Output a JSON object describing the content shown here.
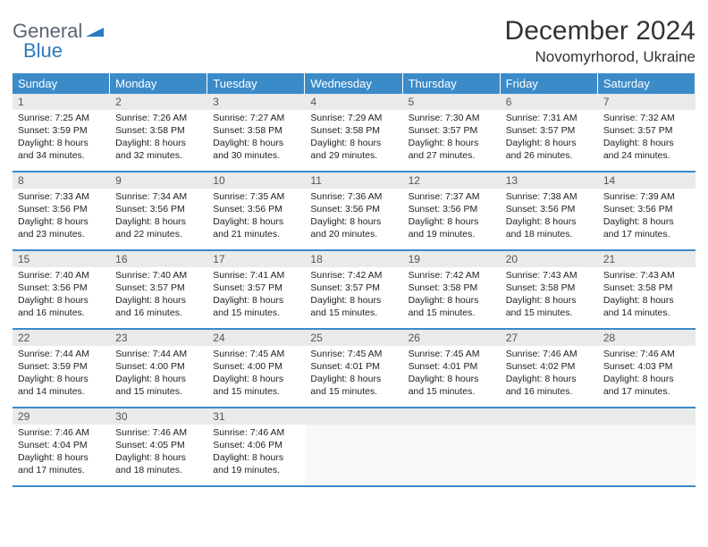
{
  "logo": {
    "part1": "General",
    "part2": "Blue"
  },
  "title": "December 2024",
  "subtitle": "Novomyrhorod, Ukraine",
  "colors": {
    "header_bar": "#3b8bc9",
    "header_text": "#ffffff",
    "daynum_bg": "#e9eaea",
    "cell_border": "#3b8bc9",
    "logo_gray": "#5c6670",
    "logo_blue": "#2a7bbf",
    "text": "#222222"
  },
  "dow": [
    "Sunday",
    "Monday",
    "Tuesday",
    "Wednesday",
    "Thursday",
    "Friday",
    "Saturday"
  ],
  "weeks": [
    [
      {
        "n": "1",
        "sunrise": "Sunrise: 7:25 AM",
        "sunset": "Sunset: 3:59 PM",
        "day": "Daylight: 8 hours and 34 minutes."
      },
      {
        "n": "2",
        "sunrise": "Sunrise: 7:26 AM",
        "sunset": "Sunset: 3:58 PM",
        "day": "Daylight: 8 hours and 32 minutes."
      },
      {
        "n": "3",
        "sunrise": "Sunrise: 7:27 AM",
        "sunset": "Sunset: 3:58 PM",
        "day": "Daylight: 8 hours and 30 minutes."
      },
      {
        "n": "4",
        "sunrise": "Sunrise: 7:29 AM",
        "sunset": "Sunset: 3:58 PM",
        "day": "Daylight: 8 hours and 29 minutes."
      },
      {
        "n": "5",
        "sunrise": "Sunrise: 7:30 AM",
        "sunset": "Sunset: 3:57 PM",
        "day": "Daylight: 8 hours and 27 minutes."
      },
      {
        "n": "6",
        "sunrise": "Sunrise: 7:31 AM",
        "sunset": "Sunset: 3:57 PM",
        "day": "Daylight: 8 hours and 26 minutes."
      },
      {
        "n": "7",
        "sunrise": "Sunrise: 7:32 AM",
        "sunset": "Sunset: 3:57 PM",
        "day": "Daylight: 8 hours and 24 minutes."
      }
    ],
    [
      {
        "n": "8",
        "sunrise": "Sunrise: 7:33 AM",
        "sunset": "Sunset: 3:56 PM",
        "day": "Daylight: 8 hours and 23 minutes."
      },
      {
        "n": "9",
        "sunrise": "Sunrise: 7:34 AM",
        "sunset": "Sunset: 3:56 PM",
        "day": "Daylight: 8 hours and 22 minutes."
      },
      {
        "n": "10",
        "sunrise": "Sunrise: 7:35 AM",
        "sunset": "Sunset: 3:56 PM",
        "day": "Daylight: 8 hours and 21 minutes."
      },
      {
        "n": "11",
        "sunrise": "Sunrise: 7:36 AM",
        "sunset": "Sunset: 3:56 PM",
        "day": "Daylight: 8 hours and 20 minutes."
      },
      {
        "n": "12",
        "sunrise": "Sunrise: 7:37 AM",
        "sunset": "Sunset: 3:56 PM",
        "day": "Daylight: 8 hours and 19 minutes."
      },
      {
        "n": "13",
        "sunrise": "Sunrise: 7:38 AM",
        "sunset": "Sunset: 3:56 PM",
        "day": "Daylight: 8 hours and 18 minutes."
      },
      {
        "n": "14",
        "sunrise": "Sunrise: 7:39 AM",
        "sunset": "Sunset: 3:56 PM",
        "day": "Daylight: 8 hours and 17 minutes."
      }
    ],
    [
      {
        "n": "15",
        "sunrise": "Sunrise: 7:40 AM",
        "sunset": "Sunset: 3:56 PM",
        "day": "Daylight: 8 hours and 16 minutes."
      },
      {
        "n": "16",
        "sunrise": "Sunrise: 7:40 AM",
        "sunset": "Sunset: 3:57 PM",
        "day": "Daylight: 8 hours and 16 minutes."
      },
      {
        "n": "17",
        "sunrise": "Sunrise: 7:41 AM",
        "sunset": "Sunset: 3:57 PM",
        "day": "Daylight: 8 hours and 15 minutes."
      },
      {
        "n": "18",
        "sunrise": "Sunrise: 7:42 AM",
        "sunset": "Sunset: 3:57 PM",
        "day": "Daylight: 8 hours and 15 minutes."
      },
      {
        "n": "19",
        "sunrise": "Sunrise: 7:42 AM",
        "sunset": "Sunset: 3:58 PM",
        "day": "Daylight: 8 hours and 15 minutes."
      },
      {
        "n": "20",
        "sunrise": "Sunrise: 7:43 AM",
        "sunset": "Sunset: 3:58 PM",
        "day": "Daylight: 8 hours and 15 minutes."
      },
      {
        "n": "21",
        "sunrise": "Sunrise: 7:43 AM",
        "sunset": "Sunset: 3:58 PM",
        "day": "Daylight: 8 hours and 14 minutes."
      }
    ],
    [
      {
        "n": "22",
        "sunrise": "Sunrise: 7:44 AM",
        "sunset": "Sunset: 3:59 PM",
        "day": "Daylight: 8 hours and 14 minutes."
      },
      {
        "n": "23",
        "sunrise": "Sunrise: 7:44 AM",
        "sunset": "Sunset: 4:00 PM",
        "day": "Daylight: 8 hours and 15 minutes."
      },
      {
        "n": "24",
        "sunrise": "Sunrise: 7:45 AM",
        "sunset": "Sunset: 4:00 PM",
        "day": "Daylight: 8 hours and 15 minutes."
      },
      {
        "n": "25",
        "sunrise": "Sunrise: 7:45 AM",
        "sunset": "Sunset: 4:01 PM",
        "day": "Daylight: 8 hours and 15 minutes."
      },
      {
        "n": "26",
        "sunrise": "Sunrise: 7:45 AM",
        "sunset": "Sunset: 4:01 PM",
        "day": "Daylight: 8 hours and 15 minutes."
      },
      {
        "n": "27",
        "sunrise": "Sunrise: 7:46 AM",
        "sunset": "Sunset: 4:02 PM",
        "day": "Daylight: 8 hours and 16 minutes."
      },
      {
        "n": "28",
        "sunrise": "Sunrise: 7:46 AM",
        "sunset": "Sunset: 4:03 PM",
        "day": "Daylight: 8 hours and 17 minutes."
      }
    ],
    [
      {
        "n": "29",
        "sunrise": "Sunrise: 7:46 AM",
        "sunset": "Sunset: 4:04 PM",
        "day": "Daylight: 8 hours and 17 minutes."
      },
      {
        "n": "30",
        "sunrise": "Sunrise: 7:46 AM",
        "sunset": "Sunset: 4:05 PM",
        "day": "Daylight: 8 hours and 18 minutes."
      },
      {
        "n": "31",
        "sunrise": "Sunrise: 7:46 AM",
        "sunset": "Sunset: 4:06 PM",
        "day": "Daylight: 8 hours and 19 minutes."
      },
      {
        "empty": true
      },
      {
        "empty": true
      },
      {
        "empty": true
      },
      {
        "empty": true
      }
    ]
  ]
}
